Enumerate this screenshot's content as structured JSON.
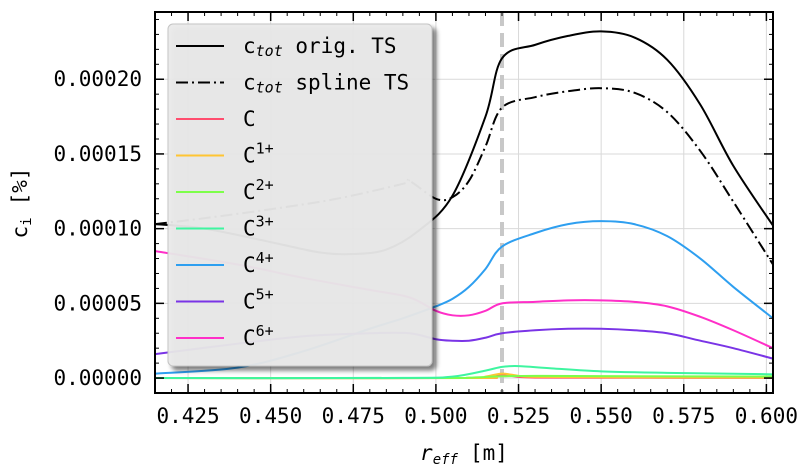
{
  "chart_data": {
    "type": "line",
    "xlabel": {
      "main": "r",
      "sub": "eff",
      "unit": "[m]"
    },
    "ylabel": {
      "main": "c",
      "sub": "i",
      "unit": "[%]"
    },
    "xlim": [
      0.415,
      0.602
    ],
    "ylim": [
      -1e-05,
      0.000245
    ],
    "x_ticks": [
      0.425,
      0.45,
      0.475,
      0.5,
      0.525,
      0.55,
      0.575,
      0.6
    ],
    "x_tick_labels": [
      "0.425",
      "0.450",
      "0.475",
      "0.500",
      "0.525",
      "0.550",
      "0.575",
      "0.600"
    ],
    "y_ticks": [
      0,
      5e-05,
      0.0001,
      0.00015,
      0.0002
    ],
    "y_tick_labels": [
      "0.00000",
      "0.00005",
      "0.00010",
      "0.00015",
      "0.00020"
    ],
    "grid": true,
    "legend_position": "top-left",
    "vline": {
      "x": 0.52,
      "color": "#c8c8c8",
      "style": "dashed"
    },
    "series": [
      {
        "name": "c_tot orig. TS",
        "legend": {
          "pre": "c",
          "sub": "tot",
          "post": " orig. TS"
        },
        "color": "#000000",
        "style": "solid",
        "x": [
          0.415,
          0.43,
          0.45,
          0.465,
          0.475,
          0.485,
          0.495,
          0.505,
          0.515,
          0.52,
          0.53,
          0.54,
          0.55,
          0.56,
          0.57,
          0.58,
          0.59,
          0.602
        ],
        "y": [
          0.000103,
          0.0001,
          9.1e-05,
          8.4e-05,
          8.3e-05,
          8.6e-05,
          9.9e-05,
          0.000122,
          0.000175,
          0.000214,
          0.000223,
          0.000229,
          0.000232,
          0.000228,
          0.000213,
          0.000183,
          0.000142,
          0.000102
        ]
      },
      {
        "name": "c_tot spline TS",
        "legend": {
          "pre": "c",
          "sub": "tot",
          "post": " spline TS"
        },
        "color": "#000000",
        "style": "dashdot",
        "x": [
          0.415,
          0.43,
          0.45,
          0.47,
          0.49,
          0.492,
          0.5,
          0.505,
          0.51,
          0.515,
          0.52,
          0.53,
          0.54,
          0.55,
          0.56,
          0.57,
          0.58,
          0.59,
          0.602
        ],
        "y": [
          0.000103,
          0.000107,
          0.000113,
          0.00012,
          0.00013,
          0.000132,
          0.00012,
          0.000121,
          0.000132,
          0.000155,
          0.000181,
          0.000188,
          0.000192,
          0.000194,
          0.000191,
          0.000178,
          0.000152,
          0.000118,
          7.6e-05
        ]
      },
      {
        "name": "C",
        "legend": {
          "pre": "C",
          "sup": ""
        },
        "color": "#ff4d6e",
        "style": "solid",
        "x": [
          0.415,
          0.51,
          0.515,
          0.52,
          0.525,
          0.53,
          0.55,
          0.602
        ],
        "y": [
          0.0,
          0.0,
          5e-07,
          2e-06,
          8e-07,
          3e-07,
          2e-07,
          1e-07
        ]
      },
      {
        "name": "C1+",
        "legend": {
          "pre": "C",
          "sup": "1+"
        },
        "color": "#ffc533",
        "style": "solid",
        "x": [
          0.415,
          0.51,
          0.515,
          0.52,
          0.525,
          0.53,
          0.55,
          0.602
        ],
        "y": [
          0.0,
          0.0,
          1e-06,
          3e-06,
          1.5e-06,
          8e-07,
          5e-07,
          3e-07
        ]
      },
      {
        "name": "C2+",
        "legend": {
          "pre": "C",
          "sup": "2+"
        },
        "color": "#7dff4a",
        "style": "solid",
        "x": [
          0.415,
          0.5,
          0.51,
          0.52,
          0.53,
          0.55,
          0.602
        ],
        "y": [
          0.0,
          0.0,
          3e-07,
          1.2e-06,
          1.5e-06,
          1.3e-06,
          1e-06
        ]
      },
      {
        "name": "C3+",
        "legend": {
          "pre": "C",
          "sup": "3+"
        },
        "color": "#3ef5a0",
        "style": "solid",
        "x": [
          0.415,
          0.49,
          0.505,
          0.515,
          0.52,
          0.525,
          0.535,
          0.55,
          0.57,
          0.602
        ],
        "y": [
          0.0,
          1e-07,
          1e-06,
          5e-06,
          7.5e-06,
          8e-06,
          6.5e-06,
          4.5e-06,
          3.5e-06,
          2.5e-06
        ]
      },
      {
        "name": "C4+",
        "legend": {
          "pre": "C",
          "sup": "4+"
        },
        "color": "#2e9ff0",
        "style": "solid",
        "x": [
          0.415,
          0.44,
          0.46,
          0.48,
          0.49,
          0.5,
          0.505,
          0.51,
          0.515,
          0.52,
          0.53,
          0.54,
          0.55,
          0.56,
          0.57,
          0.58,
          0.59,
          0.602
        ],
        "y": [
          3e-06,
          7e-06,
          1.8e-05,
          3.3e-05,
          4e-05,
          4.8e-05,
          5.3e-05,
          6.1e-05,
          7.3e-05,
          8.8e-05,
          9.7e-05,
          0.000103,
          0.000105,
          0.000103,
          9.5e-05,
          8e-05,
          6.1e-05,
          4e-05
        ]
      },
      {
        "name": "C5+",
        "legend": {
          "pre": "C",
          "sup": "5+"
        },
        "color": "#7a34e6",
        "style": "solid",
        "x": [
          0.415,
          0.44,
          0.46,
          0.48,
          0.492,
          0.5,
          0.505,
          0.51,
          0.515,
          0.52,
          0.53,
          0.54,
          0.55,
          0.56,
          0.57,
          0.58,
          0.59,
          0.602
        ],
        "y": [
          1.6e-05,
          2.3e-05,
          2.8e-05,
          3e-05,
          3e-05,
          2.6e-05,
          2.5e-05,
          2.5e-05,
          2.7e-05,
          3e-05,
          3.2e-05,
          3.3e-05,
          3.3e-05,
          3.2e-05,
          3e-05,
          2.5e-05,
          2e-05,
          1.3e-05
        ]
      },
      {
        "name": "C6+",
        "legend": {
          "pre": "C",
          "sup": "6+"
        },
        "color": "#ff2fc8",
        "style": "solid",
        "x": [
          0.415,
          0.44,
          0.46,
          0.48,
          0.492,
          0.5,
          0.505,
          0.51,
          0.515,
          0.52,
          0.53,
          0.54,
          0.55,
          0.56,
          0.57,
          0.58,
          0.59,
          0.602
        ],
        "y": [
          8.5e-05,
          7.6e-05,
          6.7e-05,
          5.9e-05,
          5.4e-05,
          4.5e-05,
          4.2e-05,
          4.2e-05,
          4.5e-05,
          5e-05,
          5.1e-05,
          5.2e-05,
          5.2e-05,
          5.1e-05,
          4.8e-05,
          4.1e-05,
          3.2e-05,
          2e-05
        ]
      }
    ]
  }
}
